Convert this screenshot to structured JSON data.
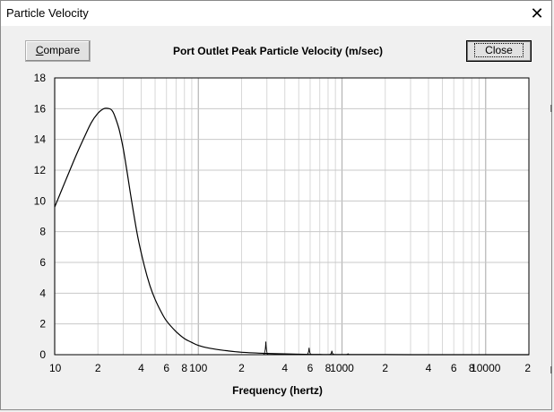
{
  "window": {
    "title": "Particle Velocity",
    "close_glyph": "✕"
  },
  "toolbar": {
    "compare_label": "Compare",
    "compare_mnemonic": "C",
    "compare_rest": "ompare",
    "close_label": "Close"
  },
  "chart_data": {
    "type": "line",
    "title": "Port Outlet Peak Particle Velocity (m/sec)",
    "xlabel": "Frequency (hertz)",
    "ylabel": "",
    "xscale": "log",
    "xlim": [
      10,
      20000
    ],
    "ylim": [
      0,
      18
    ],
    "grid": true,
    "y_ticks": [
      "18",
      "16",
      "14",
      "12",
      "10",
      "8",
      "6",
      "4",
      "2",
      "0"
    ],
    "x_tick_labels": [
      "10",
      "2",
      "4",
      "6",
      "8",
      "100",
      "2",
      "4",
      "6",
      "8",
      "1000",
      "2",
      "4",
      "6",
      "8",
      "10000",
      "2"
    ],
    "x_tick_values": [
      10,
      20,
      40,
      60,
      80,
      100,
      200,
      400,
      600,
      800,
      1000,
      2000,
      4000,
      6000,
      8000,
      10000,
      20000
    ],
    "series": [
      {
        "x": [
          10,
          12,
          14,
          16,
          18,
          20,
          22,
          24,
          25,
          26,
          28,
          30,
          32,
          35,
          38,
          42,
          46,
          50,
          55,
          60,
          70,
          80,
          90,
          100,
          120,
          150,
          200,
          300,
          400,
          500,
          600,
          700,
          800,
          900,
          1000,
          1200,
          1500,
          2000,
          3000,
          5000,
          10000,
          20000
        ],
        "y": [
          9.6,
          11.4,
          12.9,
          14.1,
          15.1,
          15.7,
          16.0,
          16.0,
          15.9,
          15.6,
          14.7,
          13.4,
          11.8,
          9.5,
          7.6,
          5.8,
          4.5,
          3.6,
          2.8,
          2.2,
          1.5,
          1.05,
          0.8,
          0.6,
          0.42,
          0.28,
          0.16,
          0.08,
          0.05,
          0.03,
          0.02,
          0.015,
          0.012,
          0.01,
          0.008,
          0.006,
          0.004,
          0.003,
          0.002,
          0.001,
          0.0005,
          0.0002
        ]
      }
    ],
    "spikes": [
      {
        "x": 295,
        "y": 0.85
      },
      {
        "x": 590,
        "y": 0.45
      },
      {
        "x": 850,
        "y": 0.25
      },
      {
        "x": 1100,
        "y": 0.05
      }
    ]
  }
}
